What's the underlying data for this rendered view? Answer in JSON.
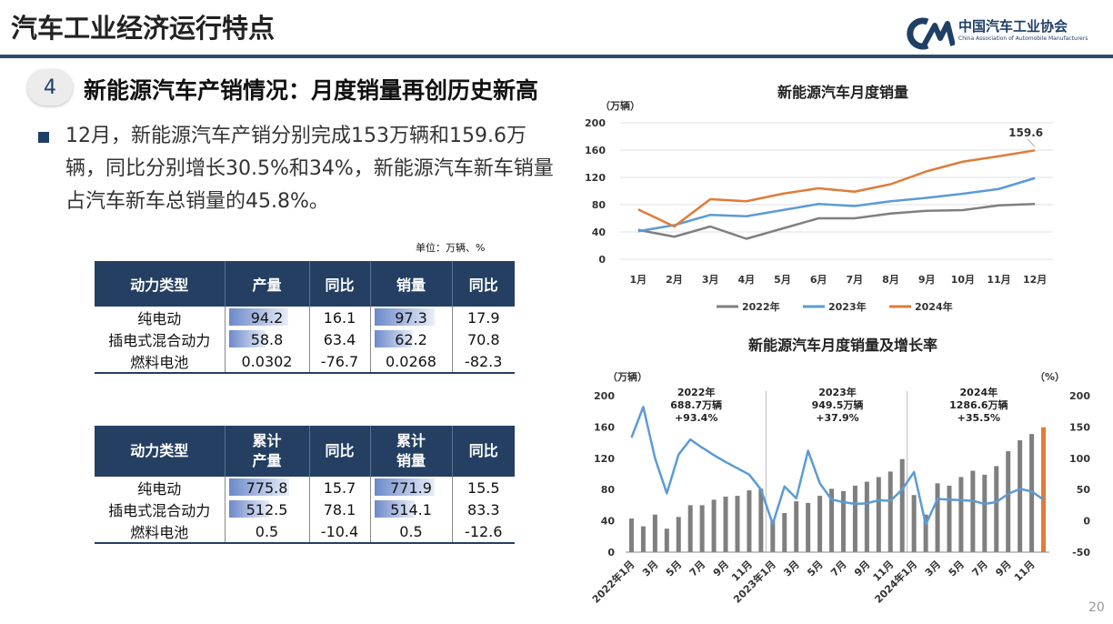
{
  "header": {
    "title": "汽车工业经济运行特点"
  },
  "logo": {
    "name_cn": "中国汽车工业协会",
    "name_en": "China Association of Automobile Manufacturers"
  },
  "section": {
    "number": "4",
    "title": "新能源汽车产销情况：月度销量再创历史新高"
  },
  "bullet": {
    "text": "12月，新能源汽车产销分别完成153万辆和159.6万辆，同比分别增长30.5%和34%，新能源汽车新车销量占汽车新车总销量的45.8%。"
  },
  "table_unit": "单位：万辆、%",
  "table_monthly": {
    "headers": [
      "动力类型",
      "产量",
      "同比",
      "销量",
      "同比"
    ],
    "rows": [
      [
        "纯电动",
        "94.2",
        "16.1",
        "97.3",
        "17.9"
      ],
      [
        "插电式混合动力",
        "58.8",
        "63.4",
        "62.2",
        "70.8"
      ],
      [
        "燃料电池",
        "0.0302",
        "-76.7",
        "0.0268",
        "-82.3"
      ]
    ],
    "bar_fraction": [
      [
        0.98,
        1.0
      ],
      [
        0.61,
        0.64
      ],
      [
        0,
        0
      ]
    ]
  },
  "table_cumulative": {
    "headers": [
      "动力类型",
      "累计\n产量",
      "同比",
      "累计\n销量",
      "同比"
    ],
    "rows": [
      [
        "纯电动",
        "775.8",
        "15.7",
        "771.9",
        "15.5"
      ],
      [
        "插电式混合动力",
        "512.5",
        "78.1",
        "514.1",
        "83.3"
      ],
      [
        "燃料电池",
        "0.5",
        "-10.4",
        "0.5",
        "-12.6"
      ]
    ],
    "bar_fraction": [
      [
        1.0,
        1.0
      ],
      [
        0.66,
        0.67
      ],
      [
        0,
        0
      ]
    ]
  },
  "chart_data": [
    {
      "type": "line",
      "title": "新能源汽车月度销量",
      "ylabel": "（万辆）",
      "ylim": [
        0,
        200
      ],
      "yticks": [
        0,
        40,
        80,
        120,
        160,
        200
      ],
      "categories": [
        "1月",
        "2月",
        "3月",
        "4月",
        "5月",
        "6月",
        "7月",
        "8月",
        "9月",
        "10月",
        "11月",
        "12月"
      ],
      "series": [
        {
          "name": "2022年",
          "color": "#7f7f7f",
          "values": [
            43,
            33,
            48,
            30,
            45,
            60,
            60,
            67,
            71,
            72,
            79,
            81
          ]
        },
        {
          "name": "2023年",
          "color": "#5b9bd5",
          "values": [
            41,
            50,
            65,
            63,
            72,
            81,
            78,
            85,
            90,
            96,
            103,
            119
          ]
        },
        {
          "name": "2024年",
          "color": "#e07b39",
          "values": [
            73,
            48,
            88,
            85,
            96,
            104,
            99,
            110,
            129,
            143,
            151,
            159.6
          ]
        }
      ],
      "annotation": "159.6",
      "legend_position": "bottom",
      "grid": true
    },
    {
      "type": "bar",
      "title": "新能源汽车月度销量及增长率",
      "ylabel": "（万辆）",
      "ylabel_right": "（%）",
      "ylim": [
        0,
        200
      ],
      "ylim_right": [
        -50,
        200
      ],
      "yticks": [
        0,
        40,
        80,
        120,
        160,
        200
      ],
      "yticks_right": [
        -50,
        0,
        50,
        100,
        150,
        200
      ],
      "xticklabels": [
        "2022年1月",
        "3月",
        "5月",
        "7月",
        "9月",
        "11月",
        "2023年1月",
        "3月",
        "5月",
        "7月",
        "9月",
        "11月",
        "2024年1月",
        "3月",
        "5月",
        "7月",
        "9月",
        "11月"
      ],
      "bars": [
        43,
        33,
        48,
        30,
        45,
        60,
        60,
        67,
        71,
        72,
        79,
        81,
        41,
        50,
        65,
        63,
        72,
        81,
        78,
        85,
        90,
        96,
        103,
        119,
        73,
        48,
        88,
        85,
        96,
        104,
        99,
        110,
        129,
        143,
        151,
        159.6
      ],
      "bar_color": "#7f7f7f",
      "highlight_color": "#e07b39",
      "growth_rate": [
        133,
        182,
        100,
        44,
        106,
        130,
        117,
        105,
        94,
        84,
        74,
        50,
        -5,
        55,
        36,
        112,
        60,
        34,
        30,
        27,
        28,
        33,
        32,
        50,
        78,
        -6,
        35,
        34,
        33,
        32,
        27,
        30,
        43,
        51,
        47,
        34
      ],
      "line_color": "#5b9bd5",
      "year_annotations": [
        {
          "year": "2022年",
          "total": "688.7万辆",
          "growth": "+93.4%"
        },
        {
          "year": "2023年",
          "total": "949.5万辆",
          "growth": "+37.9%"
        },
        {
          "year": "2024年",
          "total": "1286.6万辆",
          "growth": "+35.5%"
        }
      ]
    }
  ],
  "page_number": "20"
}
